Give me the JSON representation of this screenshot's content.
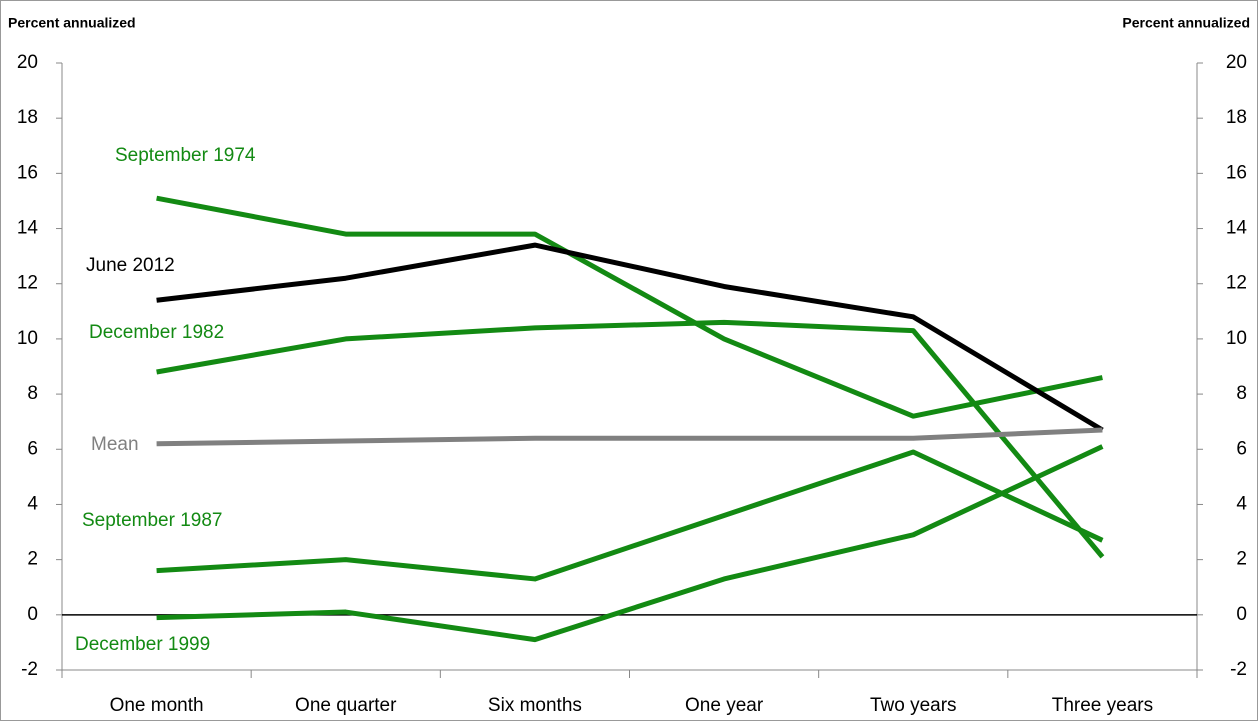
{
  "chart_data": {
    "type": "line",
    "y_label_left": "Percent annualized",
    "y_label_right": "Percent annualized",
    "categories": [
      "One month",
      "One quarter",
      "Six months",
      "One year",
      "Two years",
      "Three years"
    ],
    "series": [
      {
        "name": "September 1974",
        "color": "#138a13",
        "values": [
          15.1,
          13.8,
          13.8,
          10.0,
          7.2,
          8.6
        ]
      },
      {
        "name": "June 2012",
        "color": "#000000",
        "values": [
          11.4,
          12.2,
          13.4,
          11.9,
          10.8,
          6.7
        ]
      },
      {
        "name": "December 1982",
        "color": "#138a13",
        "values": [
          8.8,
          10.0,
          10.4,
          10.6,
          10.3,
          2.1
        ]
      },
      {
        "name": "Mean",
        "color": "#808080",
        "values": [
          6.2,
          6.3,
          6.4,
          6.4,
          6.4,
          6.7
        ]
      },
      {
        "name": "September 1987",
        "color": "#138a13",
        "values": [
          1.6,
          2.0,
          1.3,
          3.6,
          5.9,
          2.7
        ]
      },
      {
        "name": "December 1999",
        "color": "#138a13",
        "values": [
          -0.1,
          0.1,
          -0.9,
          1.3,
          2.9,
          6.1
        ]
      }
    ],
    "ylim": [
      -2,
      20
    ],
    "yticks": [
      -2,
      0,
      2,
      4,
      6,
      8,
      10,
      12,
      14,
      16,
      18,
      20
    ],
    "y2lim": [
      -2,
      20
    ],
    "y2ticks": [
      -2,
      0,
      2,
      4,
      6,
      8,
      10,
      12,
      14,
      16,
      18,
      20
    ]
  }
}
